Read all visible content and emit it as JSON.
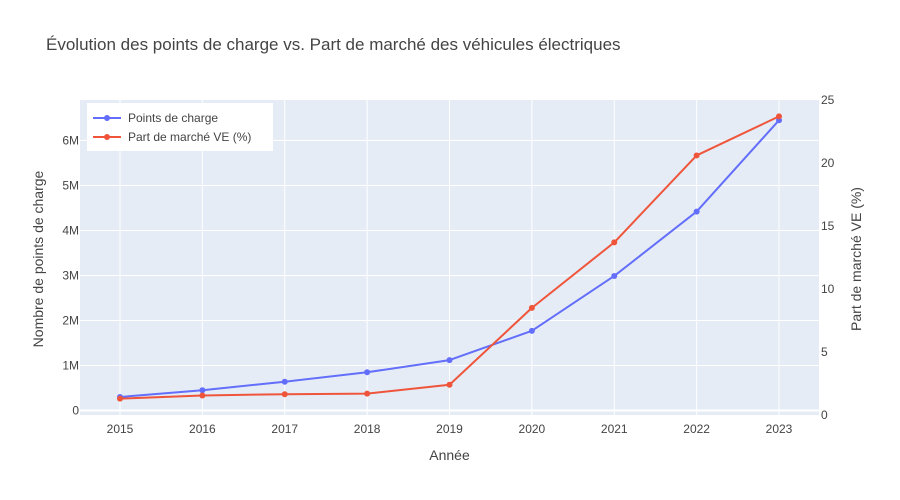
{
  "chart_data": {
    "type": "line",
    "title": "Évolution des points de charge vs. Part de marché des véhicules électriques",
    "xlabel": "Année",
    "ylabel_left": "Nombre de points de charge",
    "ylabel_right": "Part de marché VE (%)",
    "categories": [
      "2015",
      "2016",
      "2017",
      "2018",
      "2019",
      "2020",
      "2021",
      "2022",
      "2023"
    ],
    "y_left": {
      "range": [
        -100000,
        6900000
      ],
      "ticks": [
        0,
        1000000,
        2000000,
        3000000,
        4000000,
        5000000,
        6000000
      ],
      "tick_labels": [
        "0",
        "1M",
        "2M",
        "3M",
        "4M",
        "5M",
        "6M"
      ]
    },
    "y_right": {
      "range": [
        0,
        25
      ],
      "ticks": [
        0,
        5,
        10,
        15,
        20,
        25
      ],
      "tick_labels": [
        "0",
        "5",
        "10",
        "15",
        "20",
        "25"
      ]
    },
    "series": [
      {
        "name": "Points de charge",
        "axis": "left",
        "color": "#636efa",
        "values": [
          300000,
          450000,
          640000,
          850000,
          1120000,
          1770000,
          2990000,
          4420000,
          6450000
        ]
      },
      {
        "name": "Part de marché VE (%)",
        "axis": "right",
        "color": "#ef553b",
        "values": [
          1.3,
          1.55,
          1.65,
          1.7,
          2.4,
          8.5,
          13.7,
          20.6,
          23.7
        ]
      }
    ],
    "grid": true,
    "legend_position": "top-left"
  }
}
